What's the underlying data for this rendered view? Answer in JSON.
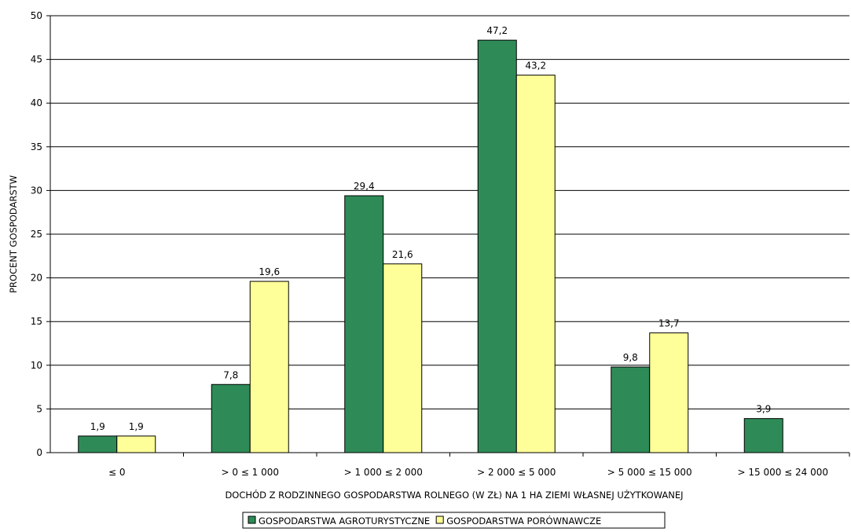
{
  "chart_data": {
    "type": "bar",
    "categories": [
      "≤ 0",
      "> 0 ≤ 1 000",
      "> 1 000 ≤ 2 000",
      "> 2 000 ≤ 5 000",
      "> 5 000 ≤ 15 000",
      "> 15 000 ≤ 24 000"
    ],
    "series": [
      {
        "name": "GOSPODARSTWA AGROTURYSTYCZNE",
        "color": "#2e8b57",
        "values": [
          1.9,
          7.8,
          29.4,
          47.2,
          9.8,
          3.9
        ],
        "labels": [
          "1,9",
          "7,8",
          "29,4",
          "47,2",
          "9,8",
          "3,9"
        ]
      },
      {
        "name": "GOSPODARSTWA PORÓWNAWCZE",
        "color": "#ffff99",
        "values": [
          1.9,
          19.6,
          21.6,
          43.2,
          13.7,
          null
        ],
        "labels": [
          "1,9",
          "19,6",
          "21,6",
          "43,2",
          "13,7",
          null
        ]
      }
    ],
    "title": "",
    "xlabel": "DOCHÓD Z RODZINNEGO GOSPODARSTWA ROLNEGO (W ZŁ)  NA 1 HA ZIEMI WŁASNEJ UŻYTKOWANEJ",
    "ylabel": "PROCENT GOSPODARSTW",
    "ylim": [
      0,
      50
    ],
    "yticks": [
      0,
      5,
      10,
      15,
      20,
      25,
      30,
      35,
      40,
      45,
      50
    ],
    "grid": true,
    "legend_position": "bottom"
  }
}
